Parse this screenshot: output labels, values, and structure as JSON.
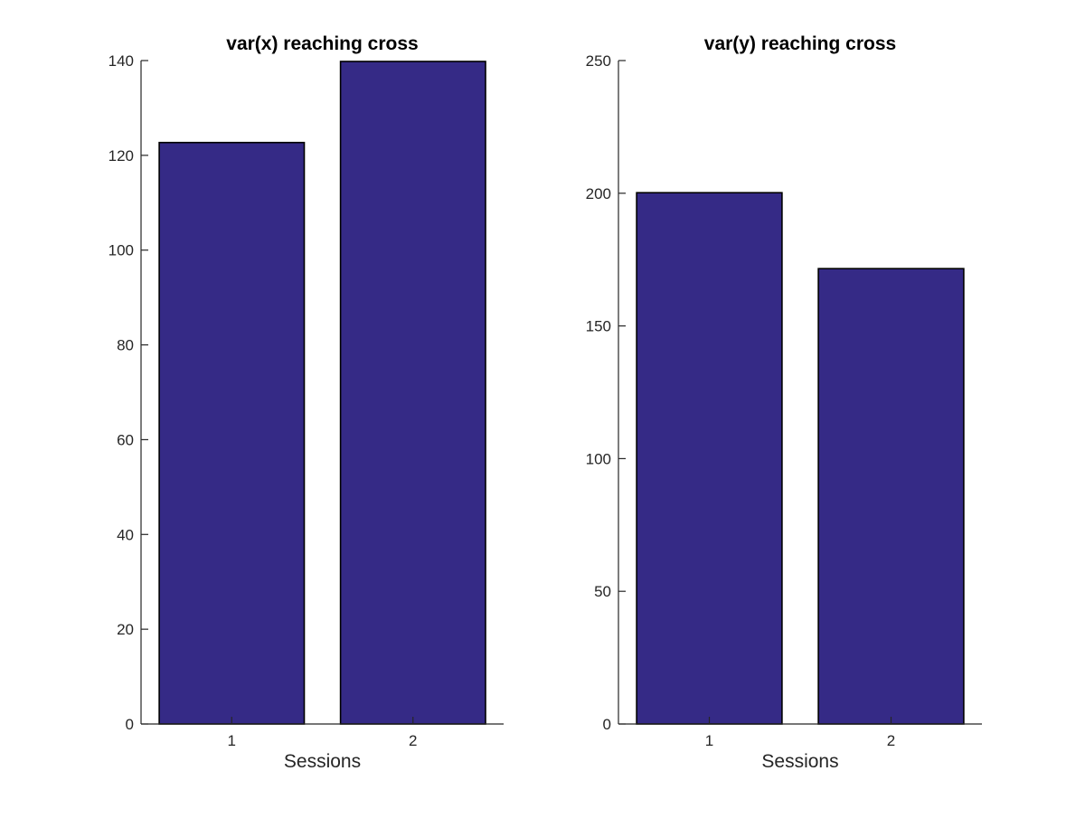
{
  "chart_data": [
    {
      "type": "bar",
      "title": "var(x) reaching cross",
      "xlabel": "Sessions",
      "ylabel": "",
      "categories": [
        "1",
        "2"
      ],
      "values": [
        122.7,
        139.8
      ],
      "ylim": [
        0,
        140
      ],
      "yticks": [
        0,
        20,
        40,
        60,
        80,
        100,
        120,
        140
      ],
      "bar_color": "#352a86",
      "grid": false,
      "legend": null
    },
    {
      "type": "bar",
      "title": "var(y) reaching cross",
      "xlabel": "Sessions",
      "ylabel": "",
      "categories": [
        "1",
        "2"
      ],
      "values": [
        200.2,
        171.6
      ],
      "ylim": [
        0,
        250
      ],
      "yticks": [
        0,
        50,
        100,
        150,
        200,
        250
      ],
      "bar_color": "#352a86",
      "grid": false,
      "legend": null
    }
  ]
}
